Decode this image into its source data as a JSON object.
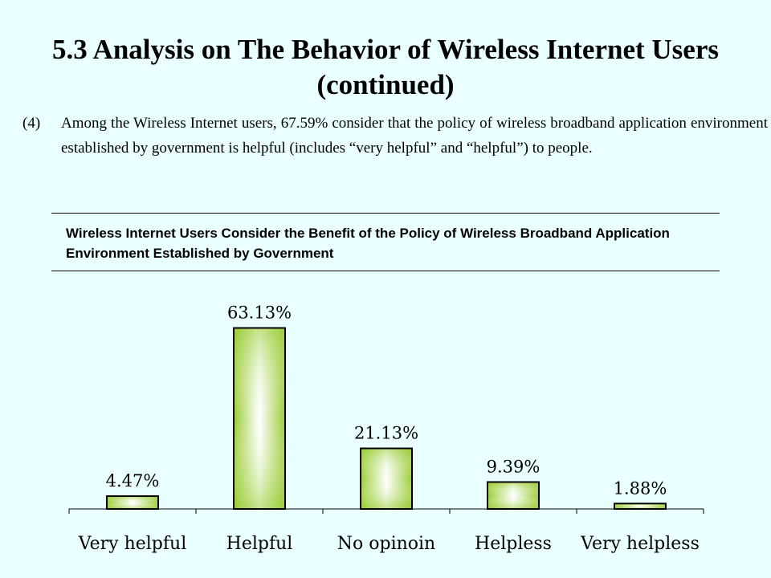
{
  "slide": {
    "title": "5.3 Analysis on The Behavior of Wireless Internet Users (continued)",
    "point_number": "(4)",
    "point_text": "Among the Wireless Internet users, 67.59% consider that the policy of wireless broadband application environment established by government is helpful (includes “very helpful” and “helpful”) to people."
  },
  "chart_data": {
    "type": "bar",
    "title": "Wireless Internet Users Consider the Benefit of the Policy of Wireless Broadband Application Environment Established by Government",
    "categories": [
      "Very helpful",
      "Helpful",
      "No opinoin",
      "Helpless",
      "Very helpless"
    ],
    "values": [
      4.47,
      63.13,
      21.13,
      9.39,
      1.88
    ],
    "value_labels": [
      "4.47%",
      "63.13%",
      "21.13%",
      "9.39%",
      "1.88%"
    ],
    "ylim": [
      0,
      70
    ],
    "grid": false,
    "legend": "none",
    "bar_color_edge": "#99cc33",
    "bar_color_center": "#ffffff"
  }
}
